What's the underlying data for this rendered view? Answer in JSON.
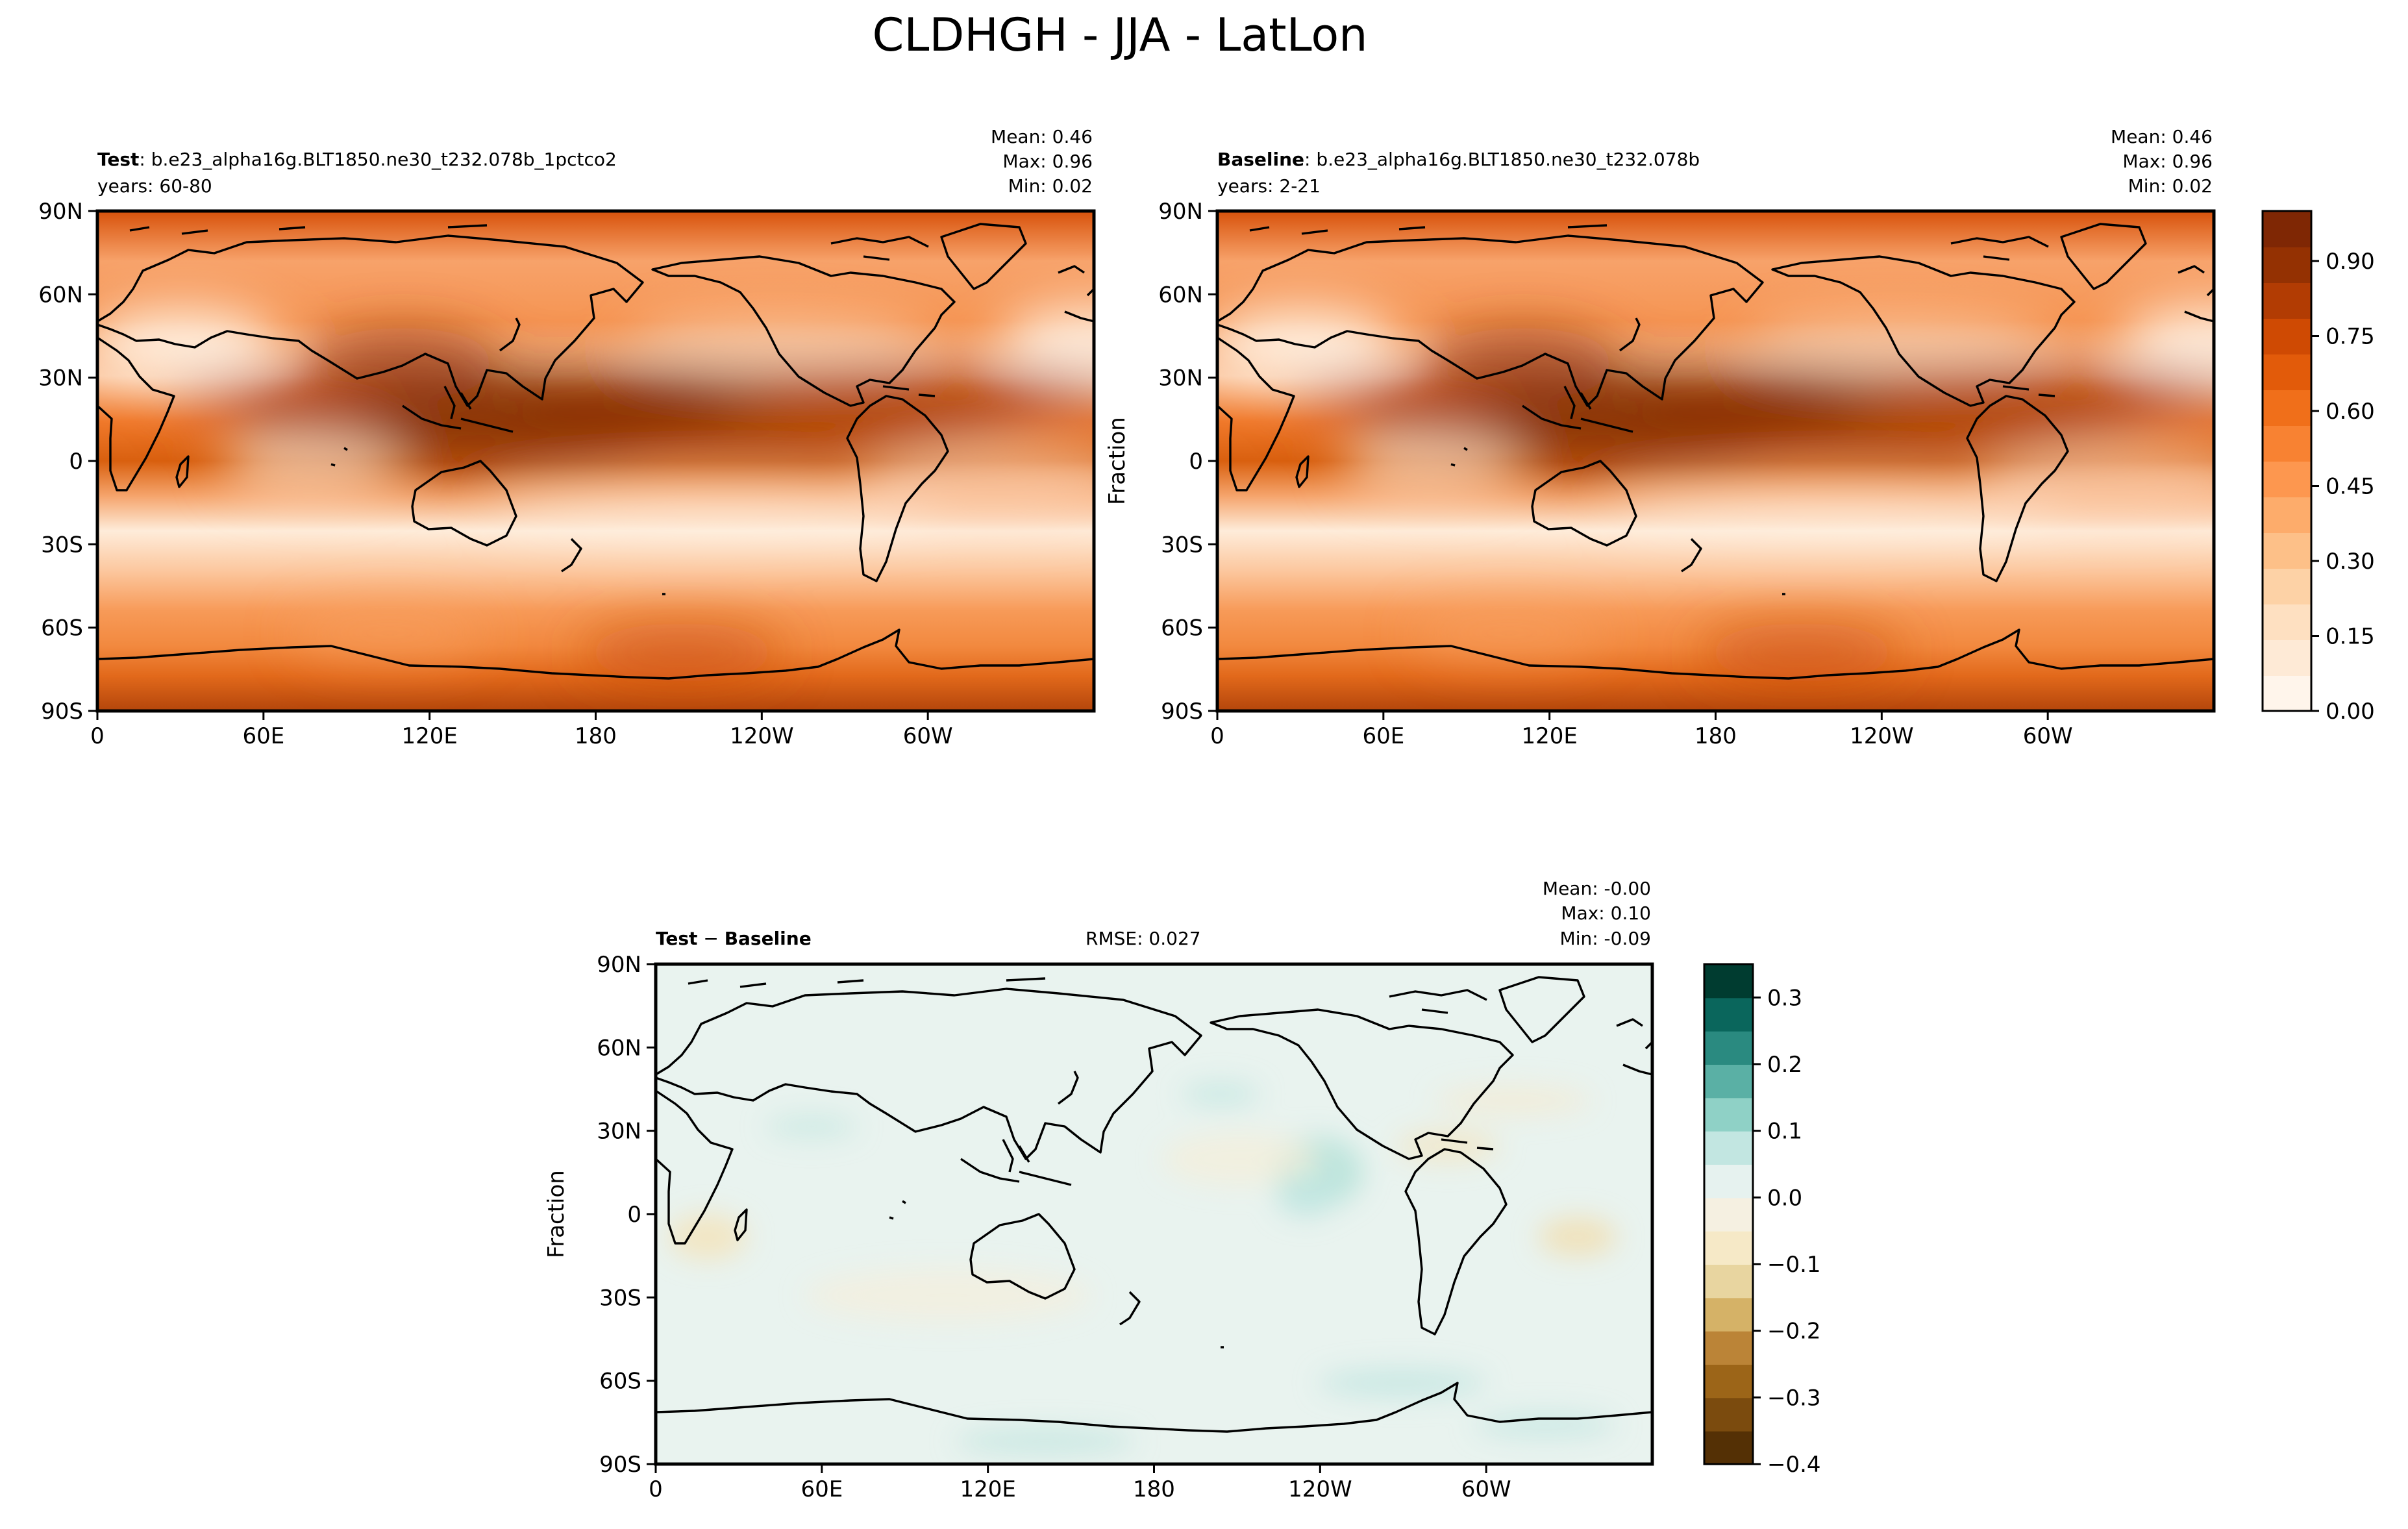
{
  "figure": {
    "title": "CLDHGH - JJA - LatLon"
  },
  "colors": {
    "frame": "#000000",
    "coast": "#000000",
    "oranges": [
      "#fff5eb",
      "#feead6",
      "#fee0c1",
      "#fdd2a6",
      "#fdc088",
      "#fdac6b",
      "#fd974f",
      "#f88232",
      "#f06f1a",
      "#e25b0a",
      "#cf4a03",
      "#b23c03",
      "#943102",
      "#7f2704"
    ],
    "brbg": [
      "#543005",
      "#7b4b0e",
      "#9c6518",
      "#bb8437",
      "#d5b267",
      "#e8d5a0",
      "#f6e9c7",
      "#f5f0e1",
      "#e6f2ef",
      "#c2e6e1",
      "#8fd1c6",
      "#5ab0a5",
      "#2a8a80",
      "#0a665c",
      "#003c30"
    ]
  },
  "chart_data": [
    {
      "type": "heatmap",
      "id": "test",
      "title_bold": "Test",
      "title_rest": ": b.e23_alpha16g.BLT1850.ne30_t232.078b_1pctco2",
      "subtitle": "years: 60-80",
      "stats": [
        "Mean:  0.46",
        "Max:  0.96",
        "Min:  0.02"
      ],
      "ylabel": "",
      "xticks": [
        "0",
        "60E",
        "120E",
        "180",
        "120W",
        "60W"
      ],
      "yticks": [
        "90N",
        "60N",
        "30N",
        "0",
        "30S",
        "60S",
        "90S"
      ],
      "xlim": [
        0,
        360
      ],
      "ylim": [
        -90,
        90
      ],
      "colormap": "Oranges",
      "range": [
        0.0,
        1.0
      ],
      "fields": {
        "mean": 0.46,
        "max": 0.96,
        "min": 0.02
      }
    },
    {
      "type": "heatmap",
      "id": "baseline",
      "title_bold": "Baseline",
      "title_rest": ": b.e23_alpha16g.BLT1850.ne30_t232.078b",
      "subtitle": "years: 2-21",
      "stats": [
        "Mean:  0.46",
        "Max:  0.96",
        "Min:  0.02"
      ],
      "ylabel": "Fraction",
      "xticks": [
        "0",
        "60E",
        "120E",
        "180",
        "120W",
        "60W"
      ],
      "yticks": [
        "90N",
        "60N",
        "30N",
        "0",
        "30S",
        "60S",
        "90S"
      ],
      "xlim": [
        0,
        360
      ],
      "ylim": [
        -90,
        90
      ],
      "colormap": "Oranges",
      "range": [
        0.0,
        1.0
      ],
      "fields": {
        "mean": 0.46,
        "max": 0.96,
        "min": 0.02
      },
      "colorbar": {
        "ticks": [
          "0.00",
          "0.15",
          "0.30",
          "0.45",
          "0.60",
          "0.75",
          "0.90"
        ],
        "values": [
          0.0,
          0.15,
          0.3,
          0.45,
          0.6,
          0.75,
          0.9
        ],
        "range": [
          0.0,
          1.0
        ]
      }
    },
    {
      "type": "heatmap",
      "id": "diff",
      "title_bold": "Test",
      "title_mid": " − ",
      "title_bold2": "Baseline",
      "rmse": "RMSE: 0.027",
      "stats": [
        "Mean: -0.00",
        "Max:  0.10",
        "Min: -0.09"
      ],
      "ylabel": "Fraction",
      "xticks": [
        "0",
        "60E",
        "120E",
        "180",
        "120W",
        "60W"
      ],
      "yticks": [
        "90N",
        "60N",
        "30N",
        "0",
        "30S",
        "60S",
        "90S"
      ],
      "xlim": [
        0,
        360
      ],
      "ylim": [
        -90,
        90
      ],
      "colormap": "BrBG",
      "range": [
        -0.4,
        0.35
      ],
      "fields": {
        "mean": -0.0,
        "max": 0.1,
        "min": -0.09
      },
      "colorbar": {
        "ticks": [
          "−0.4",
          "−0.3",
          "−0.2",
          "−0.1",
          "0.0",
          "0.1",
          "0.2",
          "0.3"
        ],
        "values": [
          -0.4,
          -0.3,
          -0.2,
          -0.1,
          0.0,
          0.1,
          0.2,
          0.3
        ],
        "range": [
          -0.4,
          0.35
        ]
      }
    }
  ]
}
